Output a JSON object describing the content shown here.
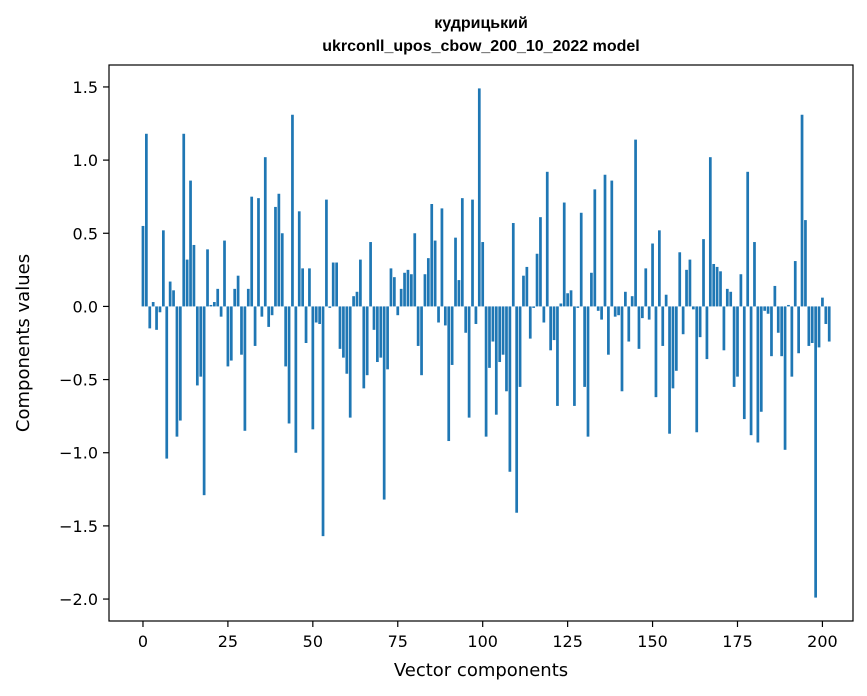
{
  "chart_data": {
    "type": "bar",
    "title": "кудрицький",
    "subtitle": "ukrconll_upos_cbow_200_10_2022 model",
    "xlabel": "Vector components",
    "ylabel": "Components values",
    "xlim": [
      -10,
      209
    ],
    "ylim": [
      -2.15,
      1.65
    ],
    "xticks": [
      0,
      25,
      50,
      75,
      100,
      125,
      150,
      175,
      200
    ],
    "yticks": [
      -2.0,
      -1.5,
      -1.0,
      -0.5,
      0.0,
      0.5,
      1.0,
      1.5
    ],
    "ytick_labels": [
      "−2.0",
      "−1.5",
      "−1.0",
      "−0.5",
      "0.0",
      "0.5",
      "1.0",
      "1.5"
    ],
    "bar_color": "#1f77b4",
    "values": [
      0.55,
      1.18,
      -0.15,
      0.03,
      -0.16,
      -0.04,
      0.52,
      -1.04,
      0.17,
      0.11,
      -0.89,
      -0.78,
      1.18,
      0.32,
      0.86,
      0.42,
      -0.54,
      -0.48,
      -1.29,
      0.39,
      0.01,
      0.03,
      0.12,
      -0.07,
      0.45,
      -0.41,
      -0.37,
      0.12,
      0.21,
      -0.33,
      -0.85,
      0.12,
      0.75,
      -0.27,
      0.74,
      -0.07,
      1.02,
      -0.14,
      -0.06,
      0.68,
      0.77,
      0.5,
      -0.41,
      -0.8,
      1.31,
      -1.0,
      0.65,
      0.26,
      -0.25,
      0.26,
      -0.84,
      -0.11,
      -0.12,
      -1.57,
      0.73,
      -0.01,
      0.3,
      0.3,
      -0.29,
      -0.35,
      -0.46,
      -0.76,
      0.07,
      0.1,
      0.32,
      -0.56,
      -0.47,
      0.44,
      -0.16,
      -0.38,
      -0.35,
      -1.32,
      -0.43,
      0.26,
      0.2,
      -0.06,
      0.12,
      0.23,
      0.25,
      0.22,
      0.5,
      -0.27,
      -0.47,
      0.22,
      0.33,
      0.7,
      0.45,
      -0.11,
      0.67,
      -0.13,
      -0.92,
      -0.4,
      0.47,
      0.18,
      0.74,
      -0.18,
      -0.76,
      0.73,
      -0.12,
      1.49,
      0.44,
      -0.89,
      -0.42,
      -0.24,
      -0.74,
      -0.38,
      -0.33,
      -0.58,
      -1.13,
      0.57,
      -1.41,
      -0.55,
      0.21,
      0.27,
      -0.22,
      -0.01,
      0.36,
      0.61,
      -0.11,
      0.92,
      -0.3,
      -0.23,
      -0.68,
      0.02,
      0.71,
      0.09,
      0.11,
      -0.68,
      -0.01,
      0.64,
      -0.55,
      -0.89,
      0.23,
      0.8,
      -0.03,
      -0.09,
      0.9,
      -0.33,
      0.86,
      -0.07,
      -0.06,
      -0.58,
      0.1,
      -0.24,
      0.07,
      1.14,
      -0.29,
      -0.08,
      0.26,
      -0.09,
      0.43,
      -0.62,
      0.52,
      -0.27,
      0.08,
      -0.87,
      -0.56,
      -0.44,
      0.37,
      -0.19,
      0.25,
      0.32,
      -0.02,
      -0.86,
      -0.21,
      0.46,
      -0.36,
      1.02,
      0.29,
      0.27,
      0.24,
      -0.3,
      0.12,
      0.1,
      -0.55,
      -0.48,
      0.22,
      -0.77,
      0.92,
      -0.88,
      0.44,
      -0.93,
      -0.72,
      -0.03,
      -0.05,
      -0.34,
      0.14,
      -0.18,
      -0.34,
      -0.98,
      0.01,
      -0.48,
      0.31,
      -0.32,
      1.31,
      0.59,
      -0.27,
      -0.25,
      -1.99,
      -0.28,
      0.06,
      -0.12,
      -0.24
    ]
  }
}
